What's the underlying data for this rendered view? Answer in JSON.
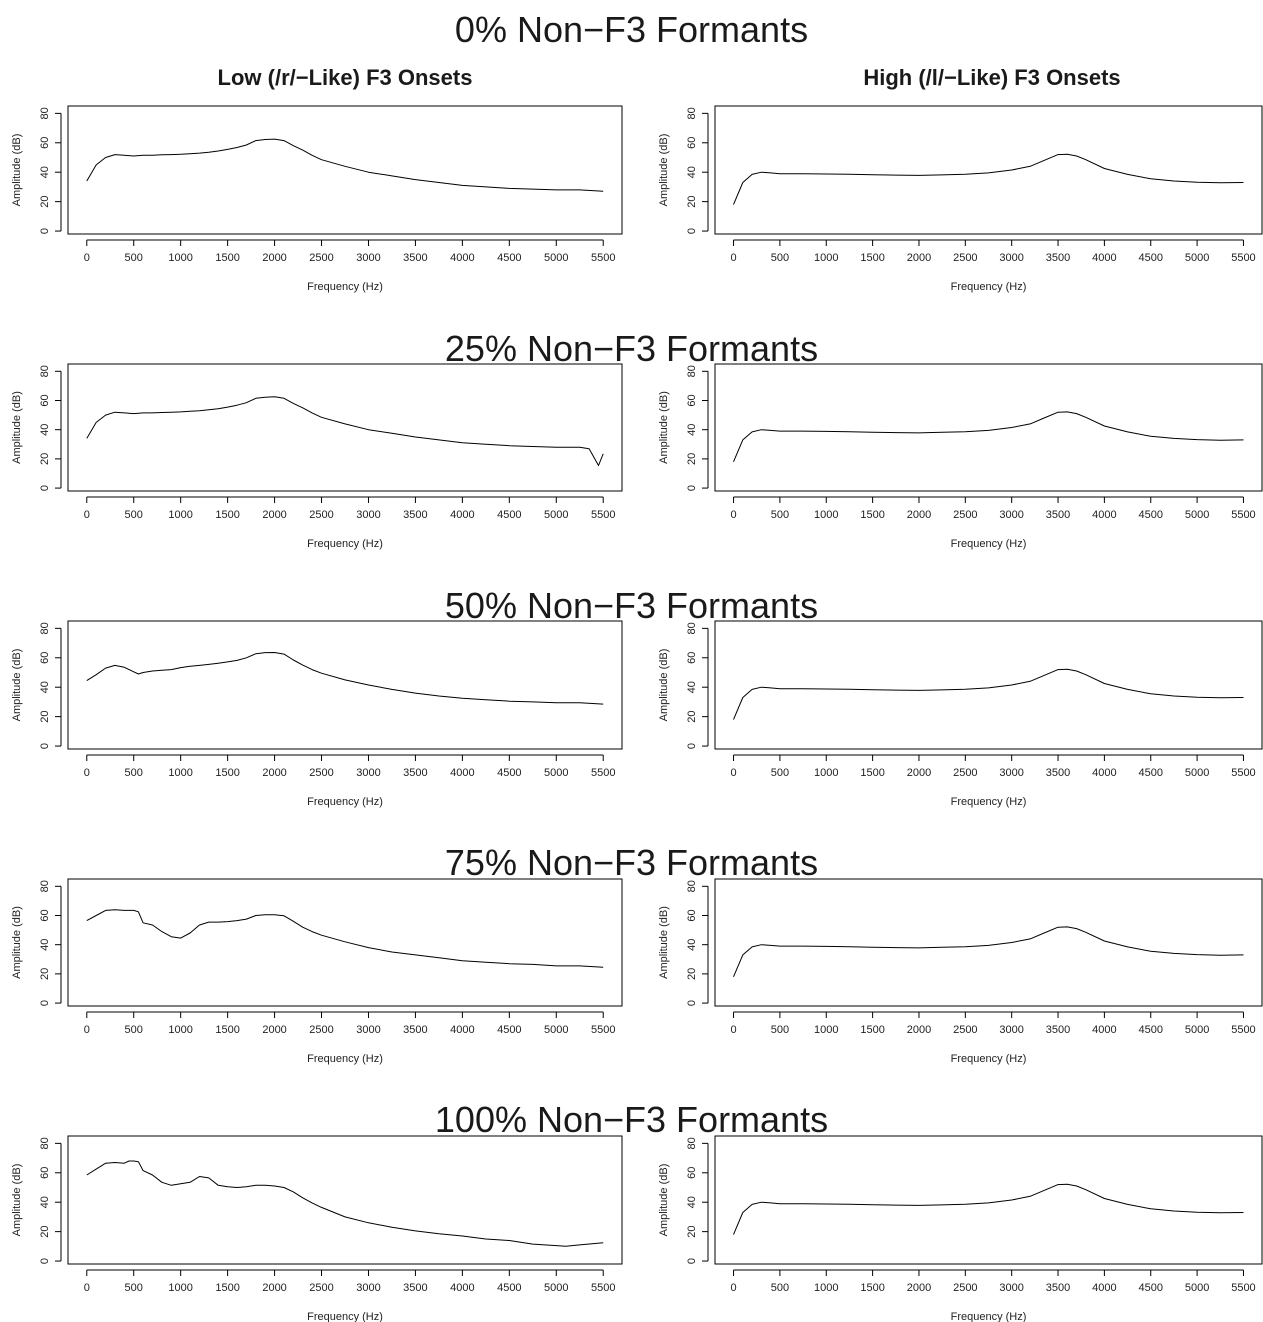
{
  "column_titles": [
    "Low (/r/−Like) F3 Onsets",
    "High (/l/−Like) F3 Onsets"
  ],
  "row_titles": [
    "0% Non−F3 Formants",
    "25% Non−F3 Formants",
    "50% Non−F3 Formants",
    "75% Non−F3 Formants",
    "100% Non−F3 Formants"
  ],
  "chart_data": [
    {
      "type": "line",
      "panel": "0% Non−F3 Formants / Low (/r/−Like) F3 Onsets",
      "xlabel": "Frequency (Hz)",
      "ylabel": "Amplitude (dB)",
      "xlim": [
        -200,
        5700
      ],
      "ylim": [
        -2,
        85
      ],
      "xticks": [
        0,
        500,
        1000,
        1500,
        2000,
        2500,
        3000,
        3500,
        4000,
        4500,
        5000,
        5500
      ],
      "yticks": [
        0,
        20,
        40,
        60,
        80
      ],
      "grid": false,
      "series": [
        {
          "x": [
            0,
            100,
            200,
            300,
            400,
            500,
            600,
            700,
            800,
            900,
            1000,
            1100,
            1200,
            1300,
            1400,
            1500,
            1600,
            1700,
            1800,
            1900,
            2000,
            2100,
            2200,
            2300,
            2400,
            2500,
            2750,
            3000,
            3250,
            3500,
            3750,
            4000,
            4250,
            4500,
            4750,
            5000,
            5250,
            5500
          ],
          "y": [
            34,
            45,
            50,
            52,
            51.5,
            51,
            51.5,
            51.5,
            51.8,
            52,
            52.2,
            52.6,
            53,
            53.6,
            54.4,
            55.5,
            56.8,
            58.5,
            61.5,
            62.2,
            62.5,
            61.5,
            58,
            55,
            51.5,
            48.5,
            44,
            40,
            37.5,
            35,
            33,
            31,
            30,
            29,
            28.5,
            28,
            28,
            27
          ]
        }
      ]
    },
    {
      "type": "line",
      "panel": "0% Non−F3 Formants / High (/l/−Like) F3 Onsets",
      "xlabel": "Frequency (Hz)",
      "ylabel": "Amplitude (dB)",
      "xlim": [
        -200,
        5700
      ],
      "ylim": [
        -2,
        85
      ],
      "xticks": [
        0,
        500,
        1000,
        1500,
        2000,
        2500,
        3000,
        3500,
        4000,
        4500,
        5000,
        5500
      ],
      "yticks": [
        0,
        20,
        40,
        60,
        80
      ],
      "grid": false,
      "series": [
        {
          "x": [
            0,
            100,
            200,
            300,
            400,
            500,
            750,
            1000,
            1250,
            1500,
            1750,
            2000,
            2250,
            2500,
            2750,
            3000,
            3200,
            3350,
            3500,
            3600,
            3700,
            3800,
            4000,
            4250,
            4500,
            4750,
            5000,
            5250,
            5500
          ],
          "y": [
            18,
            33,
            38.5,
            40,
            39.5,
            39,
            39,
            38.8,
            38.6,
            38.3,
            38,
            37.8,
            38.2,
            38.6,
            39.5,
            41.5,
            44,
            48,
            52,
            52.2,
            51,
            48.5,
            42.5,
            38.5,
            35.5,
            34,
            33.2,
            32.8,
            33
          ]
        }
      ]
    },
    {
      "type": "line",
      "panel": "25% Non−F3 Formants / Low (/r/−Like) F3 Onsets",
      "xlabel": "Frequency (Hz)",
      "ylabel": "Amplitude (dB)",
      "xlim": [
        -200,
        5700
      ],
      "ylim": [
        -2,
        85
      ],
      "xticks": [
        0,
        500,
        1000,
        1500,
        2000,
        2500,
        3000,
        3500,
        4000,
        4500,
        5000,
        5500
      ],
      "yticks": [
        0,
        20,
        40,
        60,
        80
      ],
      "grid": false,
      "series": [
        {
          "x": [
            0,
            100,
            200,
            300,
            400,
            500,
            600,
            700,
            800,
            900,
            1000,
            1100,
            1200,
            1300,
            1400,
            1500,
            1600,
            1700,
            1800,
            1900,
            2000,
            2100,
            2200,
            2300,
            2400,
            2500,
            2750,
            3000,
            3250,
            3500,
            3750,
            4000,
            4250,
            4500,
            4750,
            5000,
            5250,
            5350,
            5450,
            5500
          ],
          "y": [
            34,
            45,
            50,
            52,
            51.5,
            51,
            51.5,
            51.5,
            51.8,
            52,
            52.2,
            52.6,
            53,
            53.6,
            54.4,
            55.5,
            56.8,
            58.5,
            61.5,
            62.2,
            62.5,
            61.5,
            58,
            55,
            51.5,
            48.5,
            44,
            40,
            37.5,
            35,
            33,
            31,
            30,
            29,
            28.5,
            28,
            28,
            27,
            15.5,
            23.5
          ]
        }
      ]
    },
    {
      "type": "line",
      "panel": "25% Non−F3 Formants / High (/l/−Like) F3 Onsets",
      "xlabel": "Frequency (Hz)",
      "ylabel": "Amplitude (dB)",
      "xlim": [
        -200,
        5700
      ],
      "ylim": [
        -2,
        85
      ],
      "xticks": [
        0,
        500,
        1000,
        1500,
        2000,
        2500,
        3000,
        3500,
        4000,
        4500,
        5000,
        5500
      ],
      "yticks": [
        0,
        20,
        40,
        60,
        80
      ],
      "grid": false,
      "series": [
        {
          "x": [
            0,
            100,
            200,
            300,
            400,
            500,
            750,
            1000,
            1250,
            1500,
            1750,
            2000,
            2250,
            2500,
            2750,
            3000,
            3200,
            3350,
            3500,
            3600,
            3700,
            3800,
            4000,
            4250,
            4500,
            4750,
            5000,
            5250,
            5500
          ],
          "y": [
            18,
            33,
            38.5,
            40,
            39.5,
            39,
            39,
            38.8,
            38.6,
            38.3,
            38,
            37.8,
            38.2,
            38.6,
            39.5,
            41.5,
            44,
            48,
            52,
            52.2,
            51,
            48.5,
            42.5,
            38.5,
            35.5,
            34,
            33.2,
            32.8,
            33
          ]
        }
      ]
    },
    {
      "type": "line",
      "panel": "50% Non−F3 Formants / Low (/r/−Like) F3 Onsets",
      "xlabel": "Frequency (Hz)",
      "ylabel": "Amplitude (dB)",
      "xlim": [
        -200,
        5700
      ],
      "ylim": [
        -2,
        85
      ],
      "xticks": [
        0,
        500,
        1000,
        1500,
        2000,
        2500,
        3000,
        3500,
        4000,
        4500,
        5000,
        5500
      ],
      "yticks": [
        0,
        20,
        40,
        60,
        80
      ],
      "grid": false,
      "series": [
        {
          "x": [
            0,
            100,
            200,
            300,
            400,
            500,
            550,
            600,
            700,
            800,
            900,
            1000,
            1100,
            1200,
            1300,
            1400,
            1500,
            1600,
            1700,
            1800,
            1900,
            2000,
            2100,
            2200,
            2300,
            2400,
            2500,
            2750,
            3000,
            3250,
            3500,
            3750,
            4000,
            4250,
            4500,
            4750,
            5000,
            5250,
            5500
          ],
          "y": [
            44.5,
            48.5,
            53,
            54.8,
            53.5,
            50.5,
            49,
            50,
            51,
            51.5,
            52,
            53.3,
            54.2,
            54.8,
            55.5,
            56.3,
            57.2,
            58.2,
            60,
            62.8,
            63.5,
            63.6,
            62.5,
            58.5,
            55,
            52,
            49.5,
            45,
            41.5,
            38.5,
            36,
            34,
            32.5,
            31.5,
            30.5,
            30,
            29.5,
            29.5,
            28.5
          ]
        }
      ]
    },
    {
      "type": "line",
      "panel": "50% Non−F3 Formants / High (/l/−Like) F3 Onsets",
      "xlabel": "Frequency (Hz)",
      "ylabel": "Amplitude (dB)",
      "xlim": [
        -200,
        5700
      ],
      "ylim": [
        -2,
        85
      ],
      "xticks": [
        0,
        500,
        1000,
        1500,
        2000,
        2500,
        3000,
        3500,
        4000,
        4500,
        5000,
        5500
      ],
      "yticks": [
        0,
        20,
        40,
        60,
        80
      ],
      "grid": false,
      "series": [
        {
          "x": [
            0,
            100,
            200,
            300,
            400,
            500,
            750,
            1000,
            1250,
            1500,
            1750,
            2000,
            2250,
            2500,
            2750,
            3000,
            3200,
            3350,
            3500,
            3600,
            3700,
            3800,
            4000,
            4250,
            4500,
            4750,
            5000,
            5250,
            5500
          ],
          "y": [
            18,
            33,
            38.5,
            40,
            39.5,
            39,
            39,
            38.8,
            38.6,
            38.3,
            38,
            37.8,
            38.2,
            38.6,
            39.5,
            41.5,
            44,
            48,
            52,
            52.2,
            51,
            48.5,
            42.5,
            38.5,
            35.5,
            34,
            33.2,
            32.8,
            33
          ]
        }
      ]
    },
    {
      "type": "line",
      "panel": "75% Non−F3 Formants / Low (/r/−Like) F3 Onsets",
      "xlabel": "Frequency (Hz)",
      "ylabel": "Amplitude (dB)",
      "xlim": [
        -200,
        5700
      ],
      "ylim": [
        -2,
        85
      ],
      "xticks": [
        0,
        500,
        1000,
        1500,
        2000,
        2500,
        3000,
        3500,
        4000,
        4500,
        5000,
        5500
      ],
      "yticks": [
        0,
        20,
        40,
        60,
        80
      ],
      "grid": false,
      "series": [
        {
          "x": [
            0,
            100,
            200,
            300,
            400,
            500,
            550,
            600,
            700,
            800,
            900,
            1000,
            1100,
            1200,
            1300,
            1400,
            1500,
            1600,
            1700,
            1800,
            1900,
            2000,
            2100,
            2200,
            2300,
            2400,
            2500,
            2750,
            3000,
            3250,
            3500,
            3750,
            4000,
            4250,
            4500,
            4750,
            5000,
            5250,
            5500
          ],
          "y": [
            56.5,
            60,
            63.5,
            64,
            63.5,
            63.5,
            62.5,
            55,
            53.5,
            49,
            45.5,
            44.5,
            48,
            53.5,
            55.5,
            55.5,
            55.8,
            56.5,
            57.5,
            60,
            60.5,
            60.5,
            59.8,
            56,
            52,
            49,
            46.5,
            42,
            38,
            35,
            33,
            31,
            29,
            28,
            27,
            26.5,
            25.5,
            25.5,
            24.5
          ]
        }
      ]
    },
    {
      "type": "line",
      "panel": "75% Non−F3 Formants / High (/l/−Like) F3 Onsets",
      "xlabel": "Frequency (Hz)",
      "ylabel": "Amplitude (dB)",
      "xlim": [
        -200,
        5700
      ],
      "ylim": [
        -2,
        85
      ],
      "xticks": [
        0,
        500,
        1000,
        1500,
        2000,
        2500,
        3000,
        3500,
        4000,
        4500,
        5000,
        5500
      ],
      "yticks": [
        0,
        20,
        40,
        60,
        80
      ],
      "grid": false,
      "series": [
        {
          "x": [
            0,
            100,
            200,
            300,
            400,
            500,
            750,
            1000,
            1250,
            1500,
            1750,
            2000,
            2250,
            2500,
            2750,
            3000,
            3200,
            3350,
            3500,
            3600,
            3700,
            3800,
            4000,
            4250,
            4500,
            4750,
            5000,
            5250,
            5500
          ],
          "y": [
            18,
            33,
            38.5,
            40,
            39.5,
            39,
            39,
            38.8,
            38.6,
            38.3,
            38,
            37.8,
            38.2,
            38.6,
            39.5,
            41.5,
            44,
            48,
            52,
            52.2,
            51,
            48.5,
            42.5,
            38.5,
            35.5,
            34,
            33.2,
            32.8,
            33
          ]
        }
      ]
    },
    {
      "type": "line",
      "panel": "100% Non−F3 Formants / Low (/r/−Like) F3 Onsets",
      "xlabel": "Frequency (Hz)",
      "ylabel": "Amplitude (dB)",
      "xlim": [
        -200,
        5700
      ],
      "ylim": [
        -2,
        85
      ],
      "xticks": [
        0,
        500,
        1000,
        1500,
        2000,
        2500,
        3000,
        3500,
        4000,
        4500,
        5000,
        5500
      ],
      "yticks": [
        0,
        20,
        40,
        60,
        80
      ],
      "grid": false,
      "series": [
        {
          "x": [
            0,
            100,
            200,
            300,
            400,
            450,
            500,
            550,
            600,
            700,
            800,
            900,
            1000,
            1100,
            1200,
            1300,
            1400,
            1500,
            1600,
            1700,
            1800,
            1900,
            2000,
            2100,
            2200,
            2300,
            2400,
            2500,
            2750,
            3000,
            3250,
            3500,
            3750,
            4000,
            4250,
            4500,
            4750,
            5000,
            5100,
            5250,
            5500
          ],
          "y": [
            58.5,
            62.5,
            66.5,
            67,
            66.5,
            68,
            68,
            67.5,
            61.5,
            58.5,
            53.5,
            51.5,
            52.5,
            53.5,
            57.5,
            56.5,
            51.5,
            50.5,
            50,
            50.5,
            51.5,
            51.5,
            51,
            50,
            47,
            43,
            39.5,
            36.5,
            30,
            26,
            23,
            20.5,
            18.5,
            17,
            15,
            14,
            11.5,
            10.5,
            10,
            11,
            12.5
          ]
        }
      ]
    },
    {
      "type": "line",
      "panel": "100% Non−F3 Formants / High (/l/−Like) F3 Onsets",
      "xlabel": "Frequency (Hz)",
      "ylabel": "Amplitude (dB)",
      "xlim": [
        -200,
        5700
      ],
      "ylim": [
        -2,
        85
      ],
      "xticks": [
        0,
        500,
        1000,
        1500,
        2000,
        2500,
        3000,
        3500,
        4000,
        4500,
        5000,
        5500
      ],
      "yticks": [
        0,
        20,
        40,
        60,
        80
      ],
      "grid": false,
      "series": [
        {
          "x": [
            0,
            100,
            200,
            300,
            400,
            500,
            750,
            1000,
            1250,
            1500,
            1750,
            2000,
            2250,
            2500,
            2750,
            3000,
            3200,
            3350,
            3500,
            3600,
            3700,
            3800,
            4000,
            4250,
            4500,
            4750,
            5000,
            5250,
            5500
          ],
          "y": [
            18,
            33,
            38.5,
            40,
            39.5,
            39,
            39,
            38.8,
            38.6,
            38.3,
            38,
            37.8,
            38.2,
            38.6,
            39.5,
            41.5,
            44,
            48,
            52,
            52.2,
            51,
            48.5,
            42.5,
            38.5,
            35.5,
            34,
            33.2,
            32.8,
            33
          ]
        }
      ]
    }
  ]
}
